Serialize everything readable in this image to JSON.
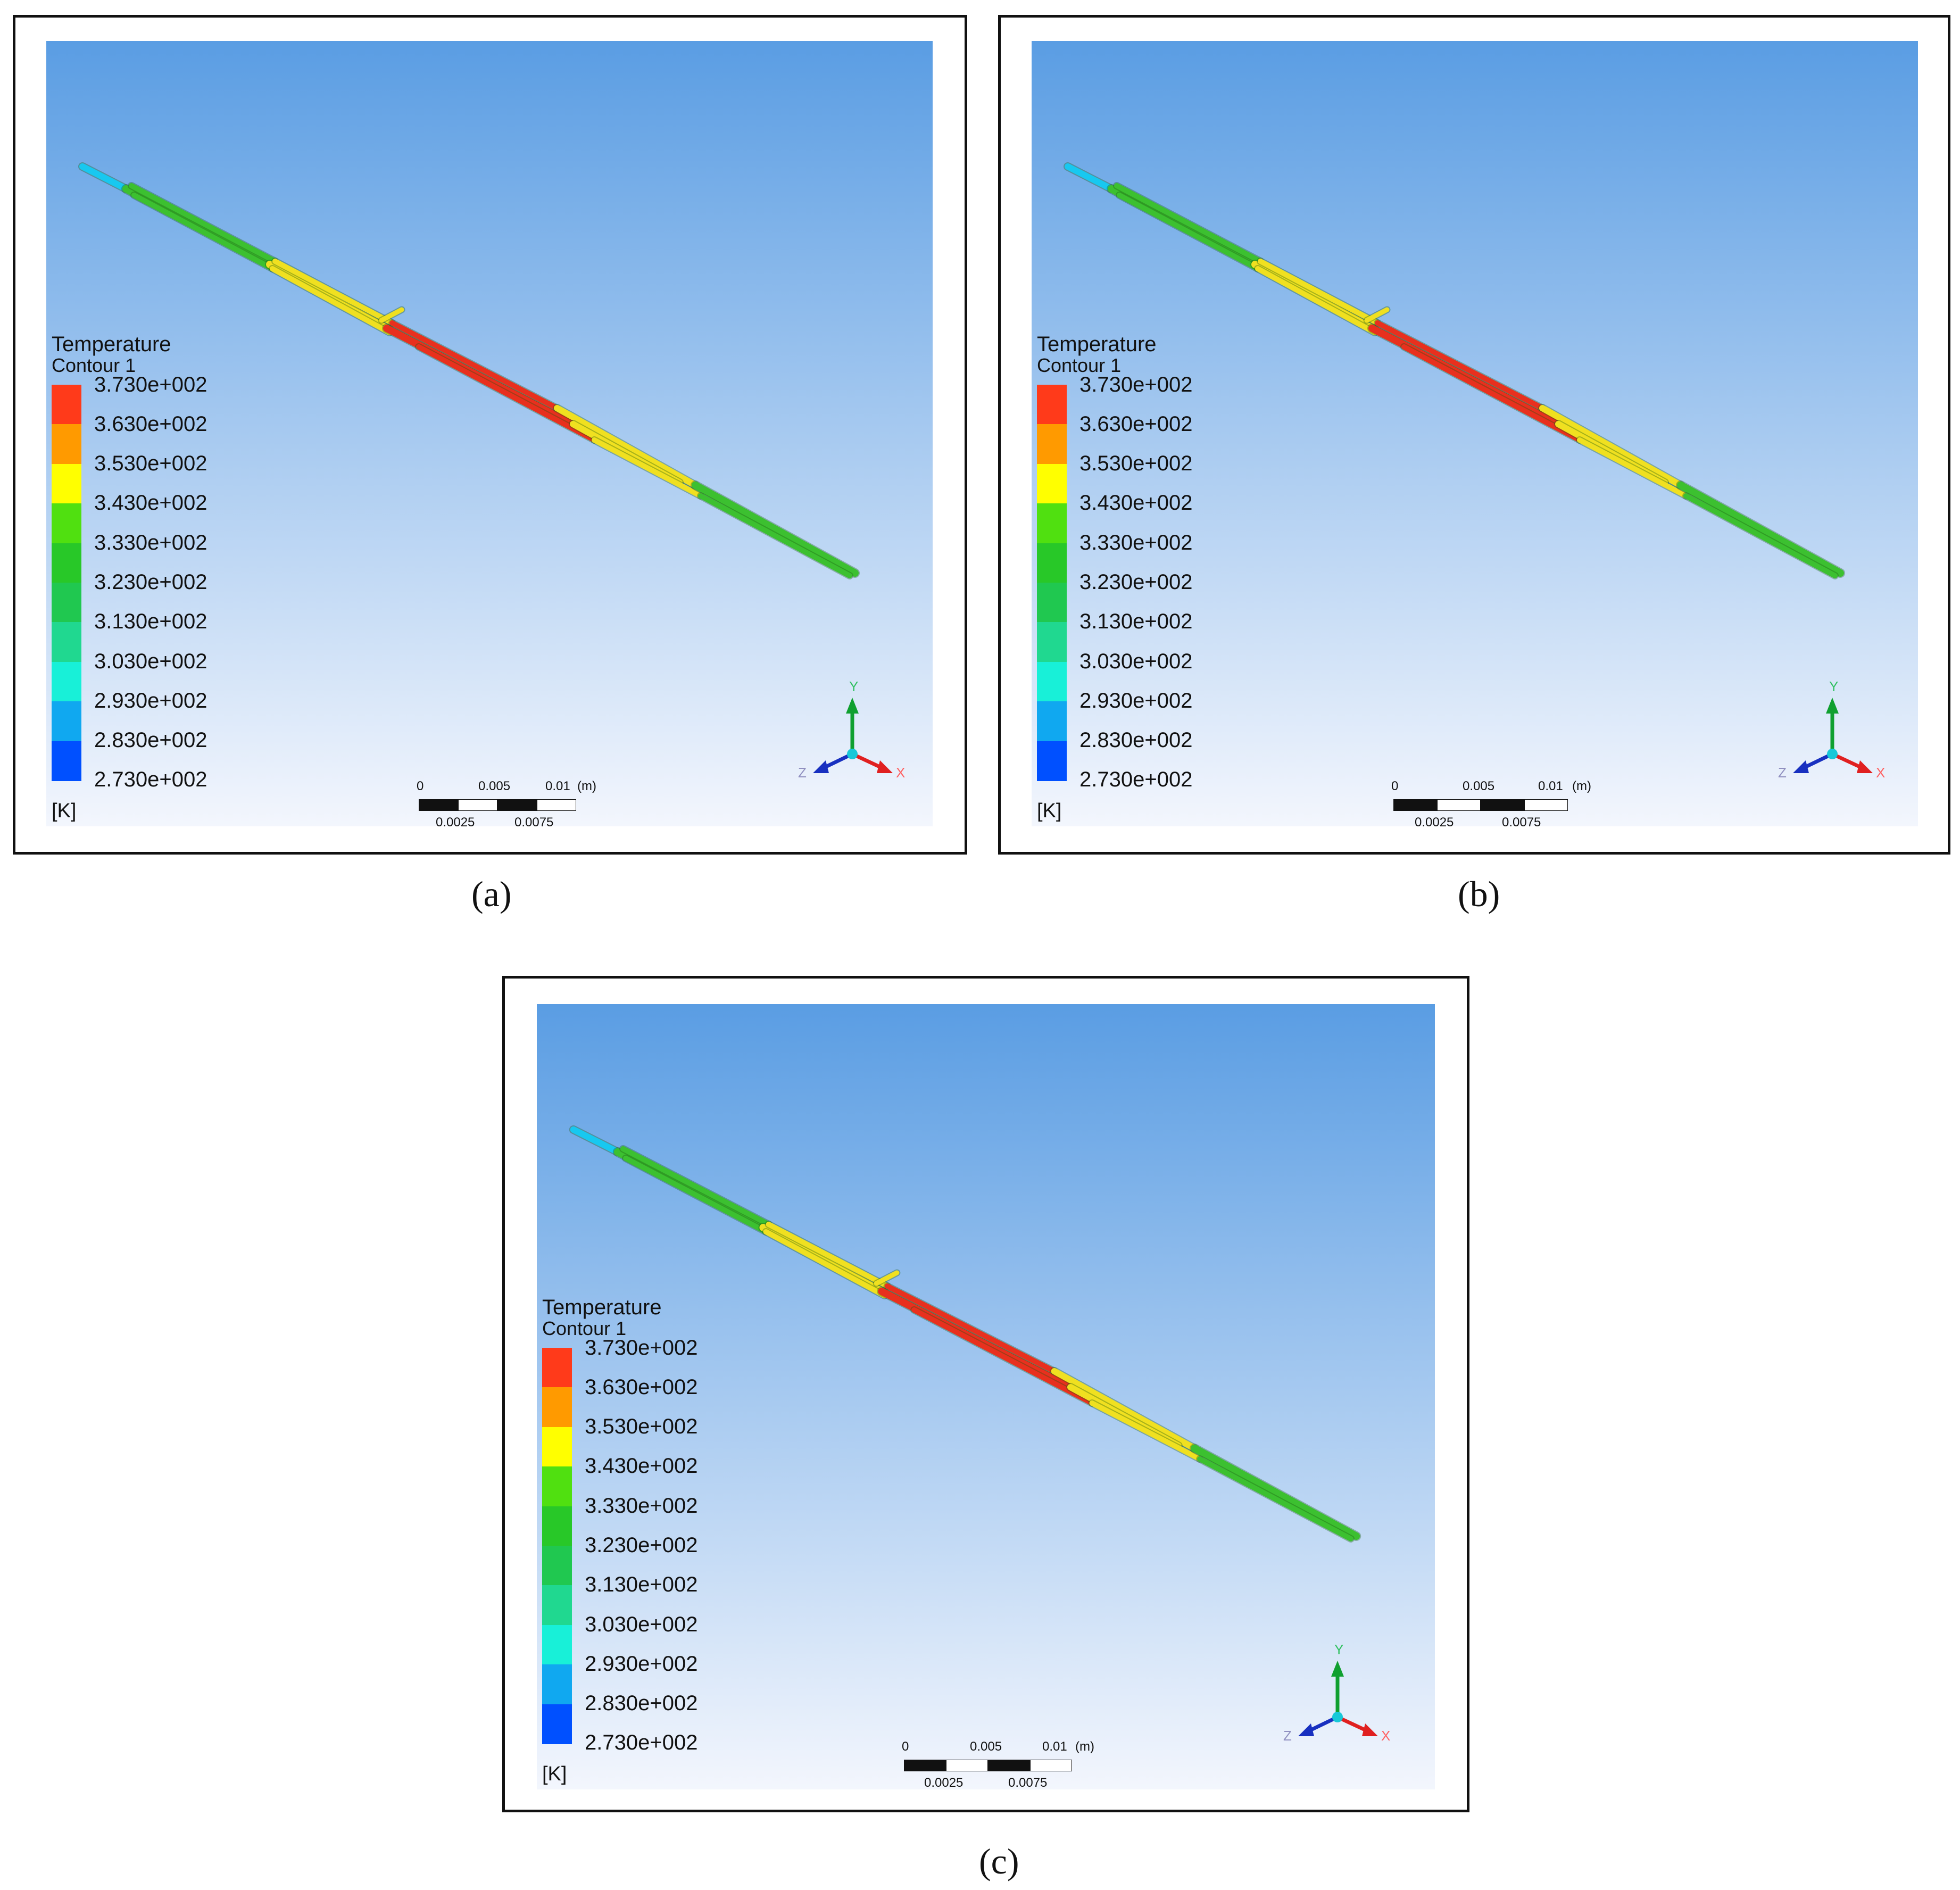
{
  "panels": [
    {
      "caption": "(a)",
      "legend": {
        "title": "Temperature",
        "subtitle": "Contour 1",
        "unit": "[K]",
        "ticks": [
          "3.730e+002",
          "3.630e+002",
          "3.530e+002",
          "3.430e+002",
          "3.330e+002",
          "3.230e+002",
          "3.130e+002",
          "3.030e+002",
          "2.930e+002",
          "2.830e+002",
          "2.730e+002"
        ]
      },
      "scale": {
        "top_labels": [
          "0",
          "0.005",
          "0.01",
          "(m)"
        ],
        "bottom_labels": [
          "0.0025",
          "0.0075"
        ]
      },
      "axes": {
        "y": "Y",
        "x": "X",
        "z": "Z"
      }
    },
    {
      "caption": "(b)",
      "legend": {
        "title": "Temperature",
        "subtitle": "Contour 1",
        "unit": "[K]",
        "ticks": [
          "3.730e+002",
          "3.630e+002",
          "3.530e+002",
          "3.430e+002",
          "3.330e+002",
          "3.230e+002",
          "3.130e+002",
          "3.030e+002",
          "2.930e+002",
          "2.830e+002",
          "2.730e+002"
        ]
      },
      "scale": {
        "top_labels": [
          "0",
          "0.005",
          "0.01",
          "(m)"
        ],
        "bottom_labels": [
          "0.0025",
          "0.0075"
        ]
      },
      "axes": {
        "y": "Y",
        "x": "X",
        "z": "Z"
      }
    },
    {
      "caption": "(c)",
      "legend": {
        "title": "Temperature",
        "subtitle": "Contour 1",
        "unit": "[K]",
        "ticks": [
          "3.730e+002",
          "3.630e+002",
          "3.530e+002",
          "3.430e+002",
          "3.330e+002",
          "3.230e+002",
          "3.130e+002",
          "3.030e+002",
          "2.930e+002",
          "2.830e+002",
          "2.730e+002"
        ]
      },
      "scale": {
        "top_labels": [
          "0",
          "0.005",
          "0.01",
          "(m)"
        ],
        "bottom_labels": [
          "0.0025",
          "0.0075"
        ]
      },
      "axes": {
        "y": "Y",
        "x": "X",
        "z": "Z"
      }
    }
  ],
  "colors": {
    "background_top": "#5a9de3",
    "background_bottom": "#f3f6fd",
    "colorbar": [
      "#ff3a1a",
      "#ff9a00",
      "#ffff00",
      "#50e010",
      "#28c828",
      "#20c850",
      "#20d890",
      "#18f0d8",
      "#10a8f0",
      "#0050ff"
    ],
    "hot": "#e8301e",
    "warm": "#f0e020",
    "mid": "#3cc030",
    "cold": "#18c8f0",
    "axis_y": "#10a030",
    "axis_x": "#e02020",
    "axis_z": "#1830c0"
  },
  "icons": [
    "coordinate-triad-icon",
    "scale-bar-icon"
  ]
}
